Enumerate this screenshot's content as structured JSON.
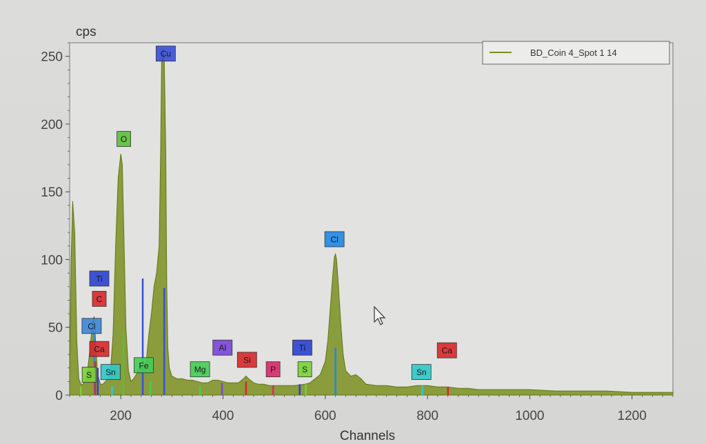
{
  "chart_data": {
    "type": "area",
    "ylabel": "cps",
    "xlabel": "Channels",
    "xlim": [
      100,
      1280
    ],
    "ylim": [
      0,
      260
    ],
    "x_ticks": [
      200,
      400,
      600,
      800,
      1000,
      1200
    ],
    "y_ticks": [
      0,
      50,
      100,
      150,
      200,
      250
    ],
    "legend": {
      "position": "top-right"
    },
    "grid": false,
    "series": [
      {
        "name": "BD_Coin 4_Spot 1 14",
        "color": "#7a8f1e",
        "x": [
          100,
          103,
          106,
          110,
          114,
          118,
          122,
          126,
          130,
          135,
          140,
          145,
          148,
          150,
          152,
          155,
          160,
          165,
          170,
          175,
          180,
          185,
          190,
          195,
          200,
          203,
          206,
          210,
          215,
          220,
          225,
          230,
          235,
          240,
          245,
          250,
          255,
          260,
          265,
          270,
          275,
          278,
          280,
          282,
          285,
          288,
          290,
          292,
          295,
          300,
          310,
          320,
          330,
          340,
          350,
          360,
          370,
          380,
          390,
          400,
          410,
          420,
          430,
          440,
          445,
          450,
          460,
          470,
          480,
          490,
          500,
          520,
          540,
          560,
          570,
          580,
          590,
          600,
          605,
          610,
          615,
          618,
          620,
          622,
          625,
          630,
          635,
          640,
          650,
          660,
          670,
          680,
          700,
          720,
          740,
          760,
          780,
          800,
          820,
          840,
          860,
          880,
          900,
          950,
          1000,
          1050,
          1100,
          1150,
          1200,
          1250,
          1280
        ],
        "y": [
          10,
          100,
          143,
          120,
          40,
          12,
          8,
          8,
          10,
          18,
          35,
          55,
          58,
          45,
          30,
          15,
          8,
          8,
          10,
          12,
          18,
          45,
          110,
          160,
          178,
          170,
          120,
          50,
          18,
          10,
          12,
          15,
          18,
          22,
          20,
          25,
          45,
          60,
          80,
          90,
          110,
          180,
          250,
          256,
          250,
          180,
          80,
          35,
          20,
          14,
          12,
          12,
          11,
          11,
          10,
          9,
          9,
          11,
          11,
          10,
          9,
          9,
          9,
          12,
          14,
          12,
          9,
          8,
          8,
          7,
          7,
          7,
          7,
          8,
          9,
          12,
          15,
          25,
          40,
          65,
          90,
          102,
          104,
          100,
          85,
          55,
          30,
          18,
          14,
          15,
          12,
          8,
          7,
          7,
          6,
          6,
          7,
          7,
          6,
          6,
          5,
          5,
          4,
          4,
          4,
          3,
          3,
          3,
          2,
          2,
          2
        ]
      }
    ],
    "element_markers": [
      {
        "label": "Cu",
        "x": 285,
        "y": 79,
        "color": "#3a4fd8"
      },
      {
        "label": "Cu",
        "x": 243,
        "y": 86,
        "color": "#3a4fd8"
      },
      {
        "label": "Cl",
        "x": 620,
        "y": 35,
        "color": "#1e88e5"
      },
      {
        "label": "O",
        "x": 205,
        "y": 45,
        "color": "#5bbf3b"
      },
      {
        "label": "Cl",
        "x": 148,
        "y": 50,
        "color": "#3d86d6"
      },
      {
        "label": "Ti",
        "x": 155,
        "y": 20,
        "color": "#2a42d0"
      },
      {
        "label": "Ti",
        "x": 550,
        "y": 8,
        "color": "#2a42d0"
      },
      {
        "label": "C",
        "x": 150,
        "y": 25,
        "color": "#d8282a"
      },
      {
        "label": "Ca",
        "x": 150,
        "y": 8,
        "color": "#d8282a"
      },
      {
        "label": "Ca",
        "x": 840,
        "y": 6,
        "color": "#d8282a"
      },
      {
        "label": "Si",
        "x": 445,
        "y": 10,
        "color": "#d8282a"
      },
      {
        "label": "P",
        "x": 498,
        "y": 7,
        "color": "#d82868"
      },
      {
        "label": "Al",
        "x": 398,
        "y": 9,
        "color": "#7a45d8"
      },
      {
        "label": "Mg",
        "x": 355,
        "y": 7,
        "color": "#45cc55"
      },
      {
        "label": "Fe",
        "x": 258,
        "y": 10,
        "color": "#45cc55"
      },
      {
        "label": "S",
        "x": 562,
        "y": 8,
        "color": "#78d23a"
      },
      {
        "label": "S",
        "x": 122,
        "y": 6,
        "color": "#78d23a"
      },
      {
        "label": "Sn",
        "x": 183,
        "y": 7,
        "color": "#2fc9c9"
      },
      {
        "label": "Sn",
        "x": 790,
        "y": 7,
        "color": "#2fc9c9"
      }
    ],
    "peak_tags": [
      {
        "label": "Cu",
        "x": 288,
        "y": 252,
        "color": "#3a4fd8"
      },
      {
        "label": "O",
        "x": 206,
        "y": 189,
        "color": "#5bbf3b"
      },
      {
        "label": "Cl",
        "x": 618,
        "y": 115,
        "color": "#1e88e5"
      },
      {
        "label": "Ti",
        "x": 158,
        "y": 86,
        "color": "#2a42d0"
      },
      {
        "label": "C",
        "x": 158,
        "y": 71,
        "color": "#d8282a"
      },
      {
        "label": "Cl",
        "x": 143,
        "y": 51,
        "color": "#3d86d6"
      },
      {
        "label": "Ca",
        "x": 158,
        "y": 34,
        "color": "#d8282a"
      },
      {
        "label": "S",
        "x": 138,
        "y": 15,
        "color": "#78d23a"
      },
      {
        "label": "Sn",
        "x": 180,
        "y": 17,
        "color": "#2fc9c9"
      },
      {
        "label": "Fe",
        "x": 245,
        "y": 22,
        "color": "#45cc55"
      },
      {
        "label": "Mg",
        "x": 355,
        "y": 19,
        "color": "#45cc55"
      },
      {
        "label": "Al",
        "x": 399,
        "y": 35,
        "color": "#7a45d8"
      },
      {
        "label": "Si",
        "x": 447,
        "y": 26,
        "color": "#d8282a"
      },
      {
        "label": "P",
        "x": 498,
        "y": 19,
        "color": "#d82868"
      },
      {
        "label": "Ti",
        "x": 555,
        "y": 35,
        "color": "#2a42d0"
      },
      {
        "label": "S",
        "x": 560,
        "y": 19,
        "color": "#78d23a"
      },
      {
        "label": "Sn",
        "x": 788,
        "y": 17,
        "color": "#2fc9c9"
      },
      {
        "label": "Ca",
        "x": 838,
        "y": 33,
        "color": "#d8282a"
      }
    ]
  }
}
